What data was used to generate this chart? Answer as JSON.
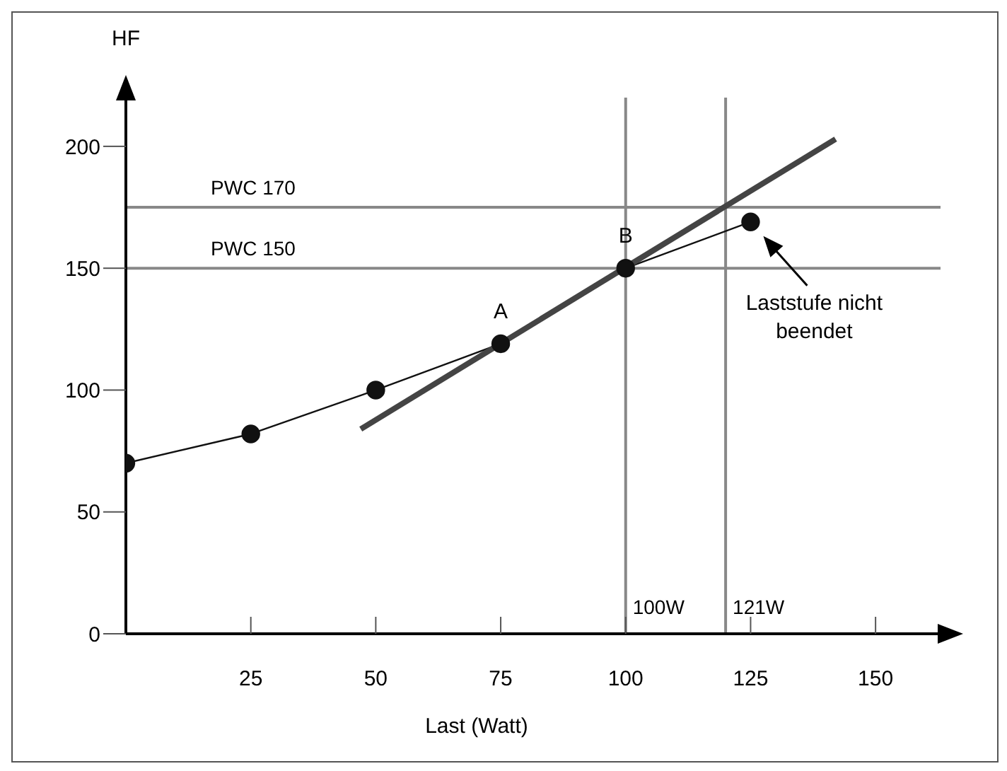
{
  "chart_data": {
    "type": "line",
    "xlabel": "Last (Watt)",
    "ylabel": "HF",
    "x": [
      0,
      25,
      50,
      75,
      100,
      125
    ],
    "series": [
      {
        "color": "#111111",
        "marker": "circle",
        "values": [
          70,
          82,
          100,
          119,
          150,
          169
        ]
      },
      {
        "color": "#444444",
        "marker": "none",
        "x": [
          47,
          142
        ],
        "values": [
          84,
          203
        ]
      }
    ],
    "xlim": [
      0,
      163
    ],
    "ylim": [
      0,
      220
    ],
    "xticks": [
      25,
      50,
      75,
      100,
      125,
      150
    ],
    "yticks": [
      0,
      50,
      100,
      150,
      200
    ],
    "ref_lines": [
      {
        "axis": "y",
        "value": 175,
        "label": "PWC 170",
        "color": "#888888"
      },
      {
        "axis": "y",
        "value": 150,
        "label": "PWC 150",
        "color": "#888888"
      },
      {
        "axis": "x",
        "value": 100,
        "label": "100W",
        "color": "#888888"
      },
      {
        "axis": "x",
        "value": 120,
        "label": "121W",
        "color": "#888888"
      }
    ],
    "annotations": [
      {
        "text": "A",
        "x": 75,
        "y": 119
      },
      {
        "text": "B",
        "x": 100,
        "y": 150
      },
      "Laststufe nicht beendet"
    ]
  }
}
